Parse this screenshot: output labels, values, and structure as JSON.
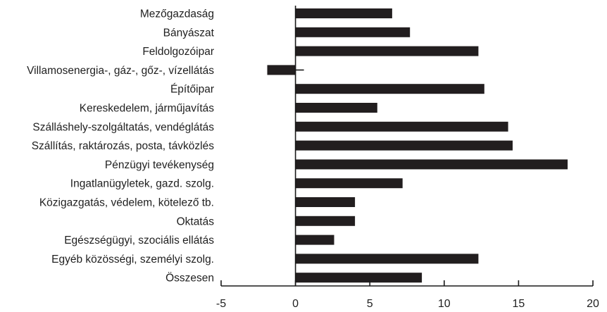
{
  "chart_data": {
    "type": "bar",
    "orientation": "horizontal",
    "title": "",
    "xlabel": "",
    "ylabel": "",
    "xlim": [
      -5,
      20
    ],
    "x_ticks": [
      -5,
      0,
      5,
      10,
      15,
      20
    ],
    "x_tick_labels": [
      "-5",
      "0",
      "5",
      "10",
      "15",
      "20"
    ],
    "grid": false,
    "legend": "none",
    "bar_color": "#221e1f",
    "categories": [
      "Mezőgazdaság",
      "Bányászat",
      "Feldolgozóipar",
      "Villamosenergia-, gáz-, gőz-, vízellátás",
      "Építőipar",
      "Kereskedelem, járműjavítás",
      "Szálláshely-szolgáltatás, vendéglátás",
      "Szállítás, raktározás, posta, távközlés",
      "Pénzügyi tevékenység",
      "Ingatlanügyletek, gazd. szolg.",
      "Közigazgatás, védelem, kötelező tb.",
      "Oktatás",
      "Egészségügyi, szociális ellátás",
      "Egyéb közösségi, személyi szolg.",
      "Összesen"
    ],
    "values": [
      6.5,
      7.7,
      12.3,
      -1.9,
      12.7,
      5.5,
      14.3,
      14.6,
      18.3,
      7.2,
      4.0,
      4.0,
      2.6,
      12.3,
      8.5
    ]
  }
}
